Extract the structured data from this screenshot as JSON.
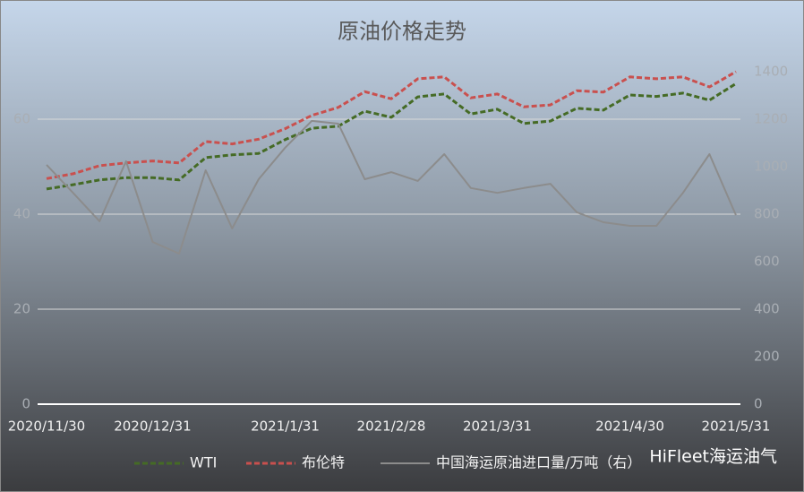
{
  "chart_data": {
    "type": "line",
    "title": "原油价格走势",
    "watermark": "HiFleet海运油气",
    "categories": [
      "2020/11/30",
      null,
      null,
      null,
      "2020/12/31",
      null,
      null,
      null,
      null,
      "2021/1/31",
      null,
      null,
      null,
      "2021/2/28",
      null,
      null,
      null,
      "2021/3/31",
      null,
      null,
      null,
      null,
      "2021/4/30",
      null,
      null,
      null,
      "2021/5/31"
    ],
    "series": [
      {
        "name": "WTI",
        "color": "#456b25",
        "dashed": true,
        "values": [
          45.3,
          46.2,
          47.2,
          47.7,
          47.7,
          47.2,
          51.9,
          52.5,
          52.8,
          55.7,
          58.1,
          58.5,
          61.7,
          60.4,
          64.7,
          65.3,
          61.1,
          62.1,
          59.1,
          59.6,
          62.3,
          61.9,
          65.1,
          64.8,
          65.5,
          64,
          67.5
        ]
      },
      {
        "name": "布伦特",
        "color": "#c9504e",
        "dashed": true,
        "values": [
          47.5,
          48.5,
          50.2,
          50.8,
          51.2,
          50.8,
          55.3,
          54.8,
          55.8,
          58,
          60.8,
          62.5,
          65.8,
          64.3,
          68.5,
          68.9,
          64.5,
          65.3,
          62.6,
          63,
          66,
          65.7,
          68.9,
          68.5,
          68.9,
          66.8,
          70
        ]
      },
      {
        "name": "中国海运原油进口量/万吨（右）",
        "color": "#8c8c8c",
        "dashed": false,
        "axis": "y2",
        "values": [
          1008,
          890,
          770,
          1023,
          683,
          634,
          985,
          740,
          947,
          1080,
          1193,
          1181,
          947,
          977,
          940,
          1053,
          910,
          890,
          910,
          928,
          808,
          766,
          751,
          751,
          890,
          1053,
          796
        ]
      }
    ],
    "ylim": [
      0,
      70
    ],
    "yticks": [
      0,
      20,
      40,
      60
    ],
    "y2lim": [
      0,
      1400
    ],
    "y2ticks": [
      0,
      200,
      400,
      600,
      800,
      1000,
      1200,
      1400
    ],
    "grid": true
  }
}
